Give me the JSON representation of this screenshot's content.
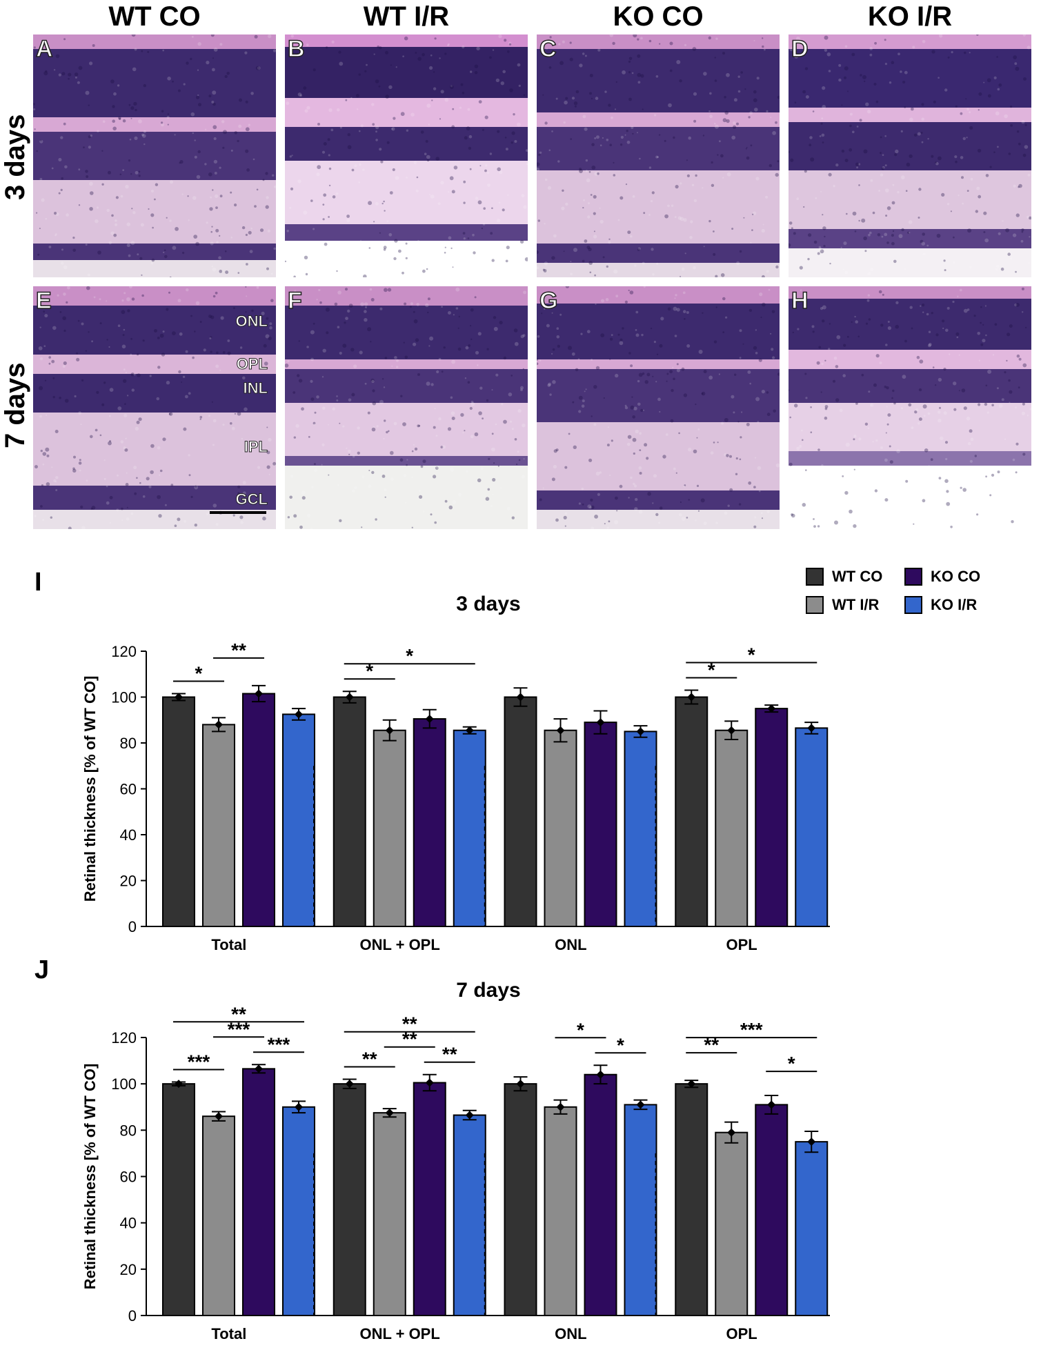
{
  "headers": [
    "WT CO",
    "WT I/R",
    "KO CO",
    "KO I/R"
  ],
  "rows": [
    "3 days",
    "7 days"
  ],
  "panels": [
    "A",
    "B",
    "C",
    "D",
    "E",
    "F",
    "G",
    "H"
  ],
  "layer_labels": [
    "ONL",
    "OPL",
    "INL",
    "IPL",
    "GCL"
  ],
  "figure_letters": {
    "i": "I",
    "j": "J"
  },
  "legend": [
    {
      "label": "WT CO",
      "color": "#333333"
    },
    {
      "label": "KO CO",
      "color": "#2e0a5e"
    },
    {
      "label": "WT I/R",
      "color": "#8c8c8c"
    },
    {
      "label": "KO I/R",
      "color": "#3366cc"
    }
  ],
  "chart_data": [
    {
      "type": "bar",
      "title": "3 days",
      "ylabel": "Retinal thickness [% of WT CO]",
      "ylim": [
        0,
        120
      ],
      "yticks": [
        0,
        20,
        40,
        60,
        80,
        100,
        120
      ],
      "categories": [
        "Total",
        "ONL + OPL",
        "ONL",
        "OPL"
      ],
      "series": [
        {
          "name": "WT CO",
          "values": [
            100,
            100,
            100,
            100
          ],
          "err": [
            1.5,
            2.5,
            4,
            3
          ]
        },
        {
          "name": "WT I/R",
          "values": [
            88,
            85.5,
            85.5,
            85.5
          ],
          "err": [
            3,
            4.5,
            5,
            4
          ]
        },
        {
          "name": "KO CO",
          "values": [
            101.5,
            90.5,
            89,
            95
          ],
          "err": [
            3.5,
            4,
            5,
            1.5
          ]
        },
        {
          "name": "KO I/R",
          "values": [
            92.5,
            85.5,
            85,
            86.5
          ],
          "err": [
            2.5,
            1.5,
            2.5,
            2.5
          ]
        }
      ],
      "significance": [
        {
          "group": 0,
          "from": 0,
          "to": 1,
          "label": "*",
          "level": 0
        },
        {
          "group": 0,
          "from": 1,
          "to": 2,
          "label": "**",
          "level": 1
        },
        {
          "group": 1,
          "from": 0,
          "to": 1,
          "label": "*",
          "level": 0
        },
        {
          "group": 1,
          "from": 0,
          "to": 3,
          "label": "*",
          "level": 1
        },
        {
          "group": 3,
          "from": 0,
          "to": 1,
          "label": "*",
          "level": 0
        },
        {
          "group": 3,
          "from": 0,
          "to": 3,
          "label": "*",
          "level": 1
        }
      ]
    },
    {
      "type": "bar",
      "title": "7 days",
      "ylabel": "Retinal thickness [% of WT CO]",
      "ylim": [
        0,
        120
      ],
      "yticks": [
        0,
        20,
        40,
        60,
        80,
        100,
        120
      ],
      "categories": [
        "Total",
        "ONL + OPL",
        "ONL",
        "OPL"
      ],
      "series": [
        {
          "name": "WT CO",
          "values": [
            100,
            100,
            100,
            100
          ],
          "err": [
            0.8,
            2,
            3,
            1.5
          ]
        },
        {
          "name": "WT I/R",
          "values": [
            86,
            87.5,
            90,
            79
          ],
          "err": [
            2,
            1.8,
            3,
            4.5
          ]
        },
        {
          "name": "KO CO",
          "values": [
            106.5,
            100.5,
            104,
            91
          ],
          "err": [
            1.8,
            3.5,
            4,
            4
          ]
        },
        {
          "name": "KO I/R",
          "values": [
            90,
            86.5,
            91,
            75
          ],
          "err": [
            2.5,
            2,
            2,
            4.5
          ]
        }
      ],
      "significance": [
        {
          "group": 0,
          "from": 0,
          "to": 1,
          "label": "***",
          "level": 0
        },
        {
          "group": 0,
          "from": 2,
          "to": 3,
          "label": "***",
          "level": 0
        },
        {
          "group": 0,
          "from": 1,
          "to": 2,
          "label": "***",
          "level": 1
        },
        {
          "group": 0,
          "from": 0,
          "to": 3,
          "label": "**",
          "level": 2
        },
        {
          "group": 1,
          "from": 0,
          "to": 1,
          "label": "**",
          "level": 0
        },
        {
          "group": 1,
          "from": 2,
          "to": 3,
          "label": "**",
          "level": 0
        },
        {
          "group": 1,
          "from": 1,
          "to": 2,
          "label": "**",
          "level": 1
        },
        {
          "group": 1,
          "from": 0,
          "to": 3,
          "label": "**",
          "level": 2
        },
        {
          "group": 2,
          "from": 2,
          "to": 3,
          "label": "*",
          "level": 0
        },
        {
          "group": 2,
          "from": 1,
          "to": 2,
          "label": "*",
          "level": 1
        },
        {
          "group": 3,
          "from": 2,
          "to": 3,
          "label": "*",
          "level": 0
        },
        {
          "group": 3,
          "from": 0,
          "to": 1,
          "label": "**",
          "level": 1
        },
        {
          "group": 3,
          "from": 0,
          "to": 3,
          "label": "***",
          "level": 2
        }
      ]
    }
  ]
}
